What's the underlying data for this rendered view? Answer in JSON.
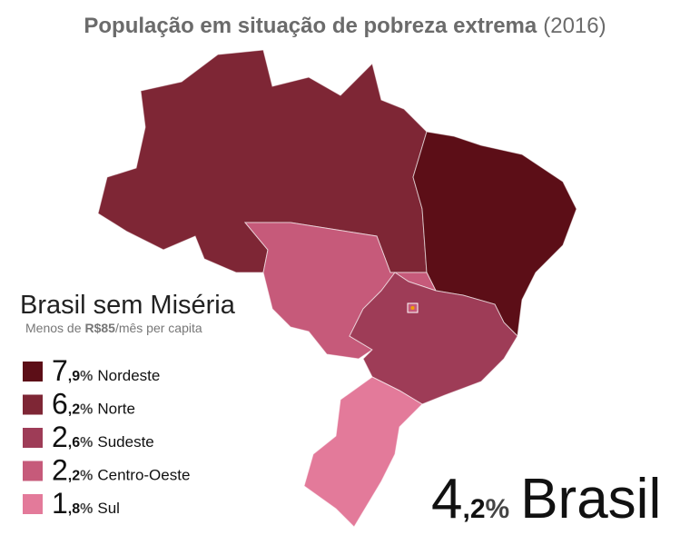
{
  "header": {
    "title": "População em situação de pobreza extrema",
    "year": "(2016)"
  },
  "program": {
    "title": "Brasil sem Miséria",
    "subtitle_before": "Menos de",
    "subtitle_bold": "R$85",
    "subtitle_after": "/mês per capita"
  },
  "legend": [
    {
      "int": "7",
      "dec": ",9",
      "unit": "%",
      "region": "Nordeste",
      "color": "#5c0e17"
    },
    {
      "int": "6",
      "dec": ",2",
      "unit": "%",
      "region": "Norte",
      "color": "#7e2635"
    },
    {
      "int": "2",
      "dec": ",6",
      "unit": "%",
      "region": "Sudeste",
      "color": "#9e3c57"
    },
    {
      "int": "2",
      "dec": ",2",
      "unit": "%",
      "region": "Centro-Oeste",
      "color": "#c65a7a"
    },
    {
      "int": "1",
      "dec": ",8",
      "unit": "%",
      "region": "Sul",
      "color": "#e37a9a"
    }
  ],
  "total": {
    "int": "4",
    "dec": ",2",
    "unit": "%",
    "label": "Brasil"
  }
}
